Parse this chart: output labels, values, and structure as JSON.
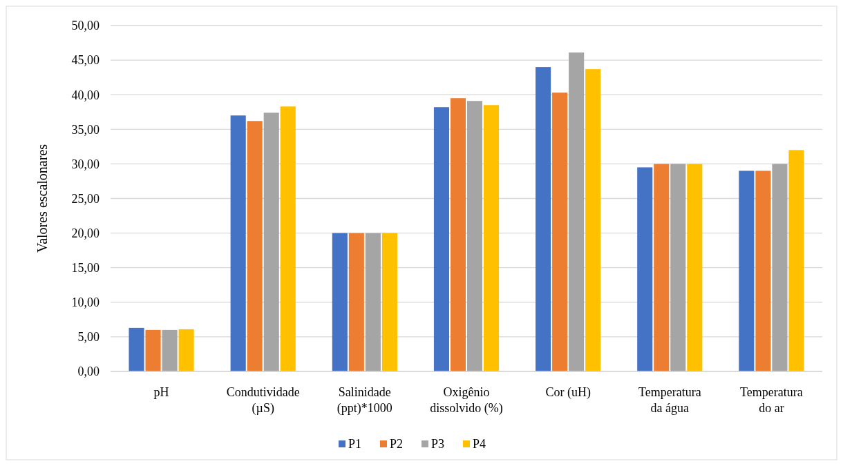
{
  "chart_data": {
    "type": "bar",
    "ylabel": "Valores escalonares",
    "categories": [
      "pH",
      "Condutividade (µS)",
      "Salinidade (ppt)*1000",
      "Oxigênio dissolvido (%)",
      "Cor (uH)",
      "Temperatura da água",
      "Temperatura do ar"
    ],
    "series": [
      {
        "name": "P1",
        "color": "#4472c4",
        "values": [
          6.3,
          37.0,
          20.0,
          38.2,
          44.0,
          29.5,
          29.0
        ]
      },
      {
        "name": "P2",
        "color": "#ed7d31",
        "values": [
          6.0,
          36.2,
          20.0,
          39.5,
          40.3,
          30.0,
          29.0
        ]
      },
      {
        "name": "P3",
        "color": "#a5a5a5",
        "values": [
          6.0,
          37.4,
          20.0,
          39.1,
          46.1,
          30.0,
          30.0
        ]
      },
      {
        "name": "P4",
        "color": "#ffc000",
        "values": [
          6.1,
          38.3,
          20.0,
          38.5,
          43.7,
          30.0,
          32.0
        ]
      }
    ],
    "ylim": [
      0,
      50
    ],
    "yticks": [
      {
        "value": 0,
        "label": "0,00"
      },
      {
        "value": 5,
        "label": "5,00"
      },
      {
        "value": 10,
        "label": "10,00"
      },
      {
        "value": 15,
        "label": "15,00"
      },
      {
        "value": 20,
        "label": "20,00"
      },
      {
        "value": 25,
        "label": "25,00"
      },
      {
        "value": 30,
        "label": "30,00"
      },
      {
        "value": 35,
        "label": "35,00"
      },
      {
        "value": 40,
        "label": "40,00"
      },
      {
        "value": 45,
        "label": "45,00"
      },
      {
        "value": 50,
        "label": "50,00"
      }
    ],
    "grid": "y",
    "legend": "bottom"
  }
}
